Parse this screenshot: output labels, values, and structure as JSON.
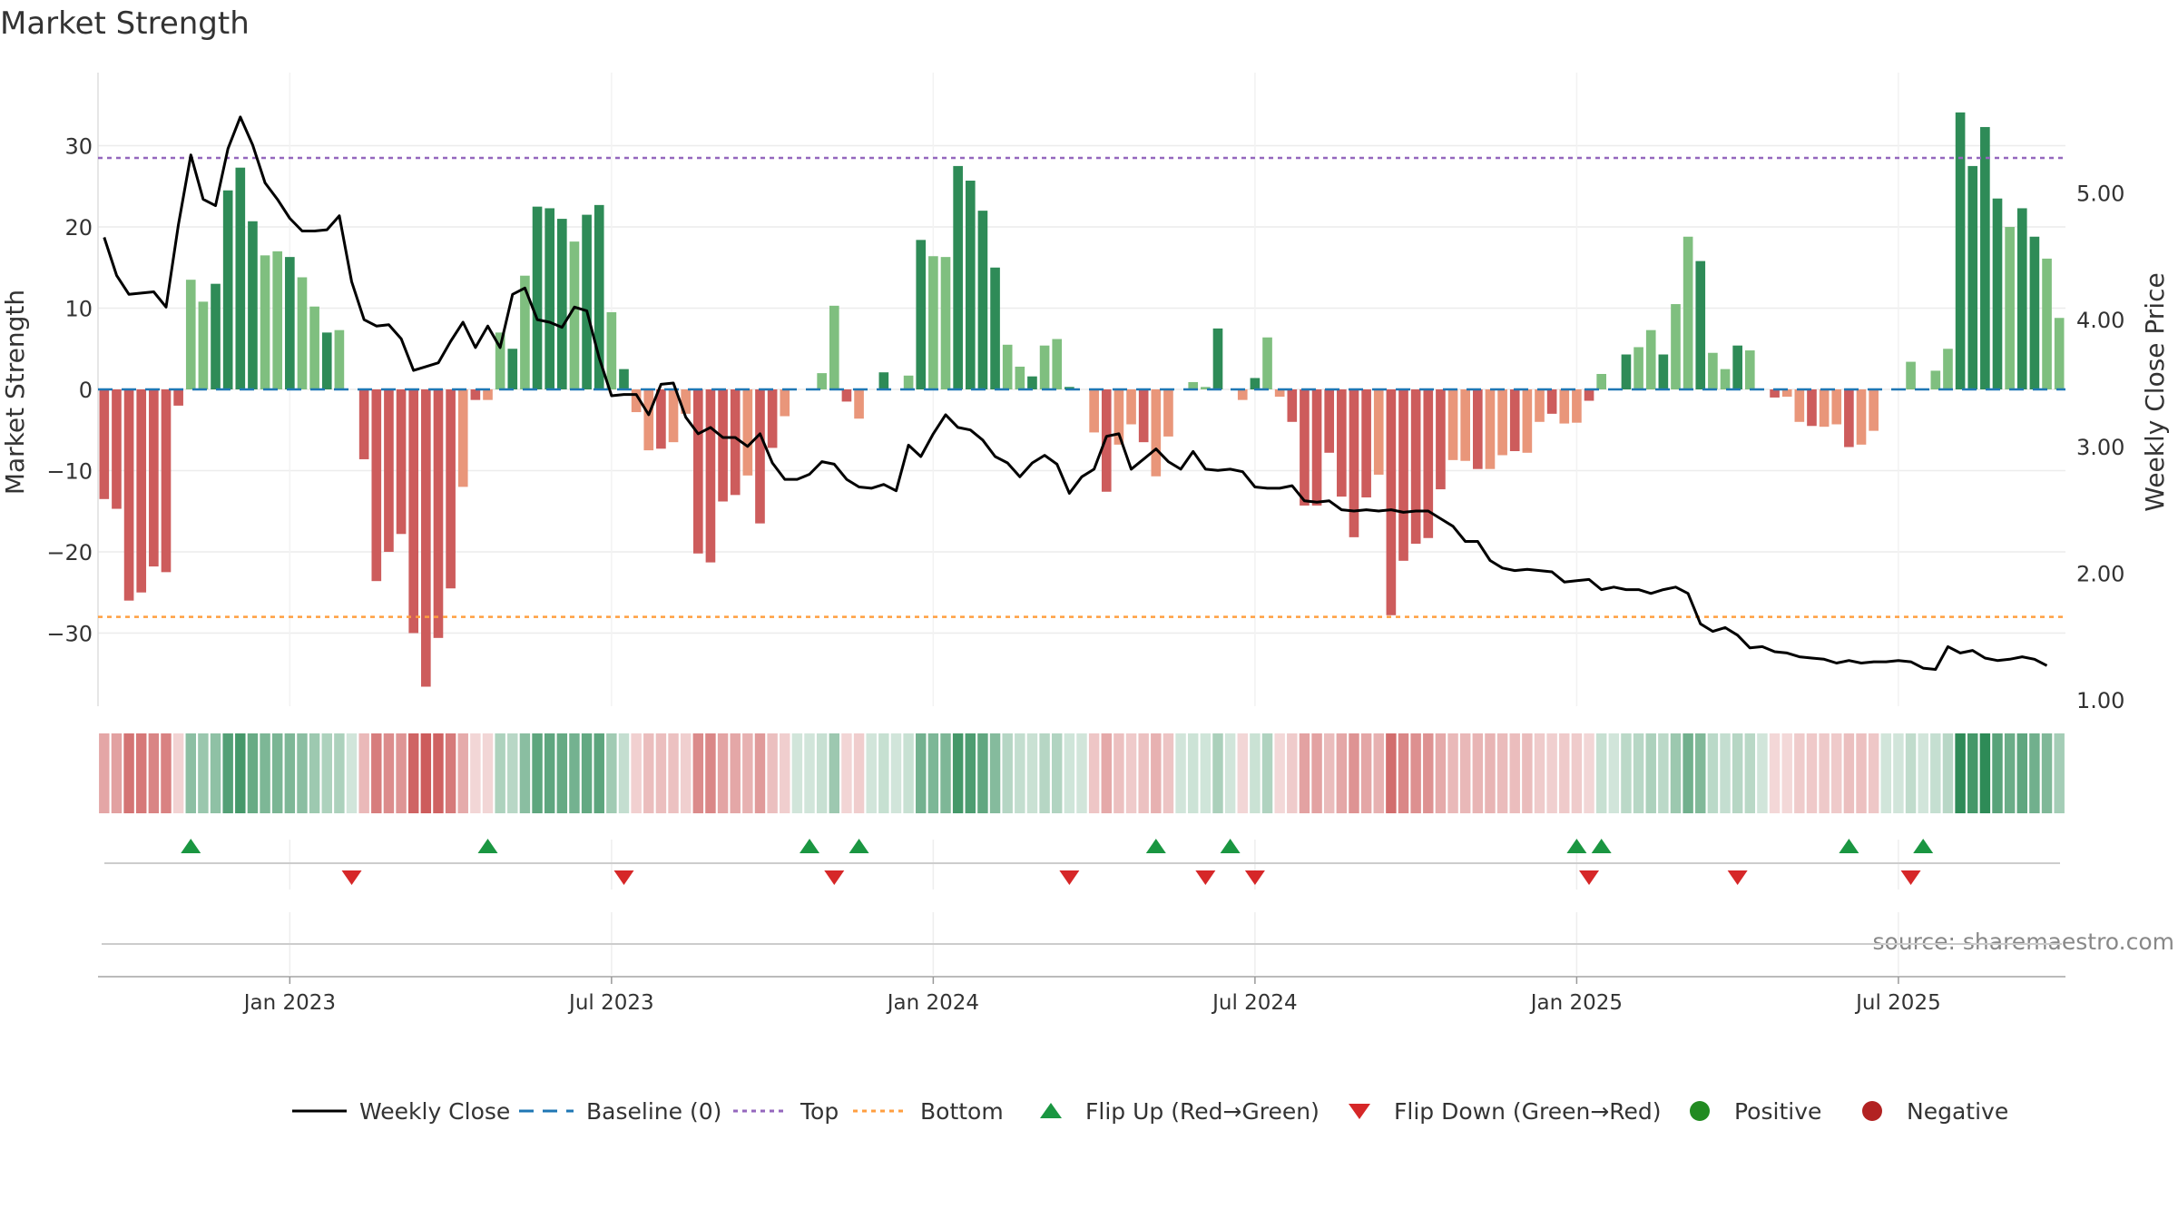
{
  "chart_data": {
    "type": "bar",
    "title": "Market Strength",
    "ylabel": "Market Strength",
    "y2label": "Weekly Close Price",
    "ylim": [
      -39,
      39
    ],
    "y2lim": [
      0.95,
      5.95
    ],
    "y_ticks": [
      30,
      20,
      10,
      0,
      -10,
      -20,
      -30
    ],
    "y_tick_labels": [
      "30",
      "20",
      "10",
      "0",
      "−10",
      "−20",
      "−30"
    ],
    "y2_ticks": [
      5.0,
      4.0,
      3.0,
      2.0,
      1.0
    ],
    "y2_tick_labels": [
      "5.00",
      "4.00",
      "3.00",
      "2.00",
      "1.00"
    ],
    "x_ticks": [
      22,
      48,
      74,
      100,
      126
    ],
    "x_tick_labels": [
      "Jan 2023",
      "Jul 2023",
      "Jan 2024",
      "Jul 2024",
      "Jan 2025",
      "Jul 2025"
    ],
    "x_tick_positions": [
      15,
      41,
      67,
      93,
      119,
      145
    ],
    "top_level": 28.5,
    "bottom_level": -28.0,
    "grid": true,
    "source": "source: sharemaestro.com",
    "legend": [
      "Weekly Close",
      "Baseline (0)",
      "Top",
      "Bottom",
      "Flip Up (Red→Green)",
      "Flip Down (Green→Red)",
      "Positive",
      "Negative"
    ],
    "legend_placement": "bottom",
    "series": [
      {
        "name": "Market Strength",
        "values": [
          -13.5,
          -14.7,
          -26,
          -25,
          -21.8,
          -22.5,
          -2,
          13.5,
          10.8,
          13,
          24.5,
          27.3,
          20.7,
          16.5,
          17,
          16.3,
          13.8,
          10.2,
          7,
          7.3,
          0,
          -8.6,
          -23.6,
          -20,
          -17.8,
          -30,
          -36.6,
          -30.6,
          -24.5,
          -12,
          -1.3,
          -1.3,
          7,
          5,
          14,
          22.5,
          22.3,
          21,
          18.2,
          21.5,
          22.7,
          9.5,
          2.5,
          -2.8,
          -7.5,
          -7.3,
          -6.5,
          -3,
          -20.2,
          -21.3,
          -13.8,
          -13,
          -10.6,
          -16.5,
          -7.2,
          -3.3,
          0,
          0,
          2,
          10.3,
          -1.5,
          -3.6,
          0,
          2.1,
          0,
          1.7,
          18.4,
          16.4,
          16.3,
          27.5,
          25.7,
          22,
          15,
          5.5,
          2.8,
          1.6,
          5.4,
          6.2,
          0.3,
          0,
          -5.3,
          -12.6,
          -6.8,
          -4.3,
          -6.5,
          -10.7,
          -5.8,
          0,
          0.9,
          0.3,
          7.5,
          0,
          -1.3,
          1.4,
          6.4,
          -0.9,
          -4,
          -14.3,
          -14.3,
          -7.8,
          -13.2,
          -18.2,
          -13.3,
          -10.5,
          -27.8,
          -21.1,
          -19,
          -18.3,
          -12.3,
          -8.7,
          -8.8,
          -9.8,
          -9.8,
          -8.1,
          -7.6,
          -7.8,
          -4,
          -3,
          -4.2,
          -4.1,
          -1.4,
          1.9,
          0,
          4.3,
          5.2,
          7.3,
          4.3,
          10.5,
          18.8,
          15.8,
          4.5,
          2.5,
          5.4,
          4.8,
          0,
          -1,
          -0.9,
          -4,
          -4.5,
          -4.6,
          -4.3,
          -7.1,
          -6.8,
          -5.1,
          0,
          0,
          3.4,
          0,
          2.3,
          5,
          34.1,
          27.5,
          32.3,
          23.5,
          20,
          22.3,
          18.8,
          16.1,
          8.8
        ]
      },
      {
        "name": "Weekly Close",
        "axis": "right",
        "values": [
          4.65,
          4.35,
          4.2,
          4.21,
          4.22,
          4.1,
          4.75,
          5.3,
          4.95,
          4.9,
          5.35,
          5.6,
          5.38,
          5.08,
          4.95,
          4.8,
          4.7,
          4.7,
          4.71,
          4.82,
          4.3,
          4.0,
          3.95,
          3.96,
          3.85,
          3.6,
          3.63,
          3.66,
          3.83,
          3.98,
          3.78,
          3.95,
          3.78,
          4.2,
          4.25,
          4.0,
          3.98,
          3.94,
          4.1,
          4.07,
          3.7,
          3.4,
          3.41,
          3.41,
          3.25,
          3.49,
          3.5,
          3.23,
          3.1,
          3.15,
          3.07,
          3.07,
          3.0,
          3.1,
          2.87,
          2.74,
          2.74,
          2.78,
          2.88,
          2.86,
          2.74,
          2.68,
          2.67,
          2.7,
          2.65,
          3.01,
          2.92,
          3.1,
          3.25,
          3.15,
          3.13,
          3.05,
          2.92,
          2.87,
          2.76,
          2.87,
          2.93,
          2.86,
          2.63,
          2.76,
          2.82,
          3.08,
          3.1,
          2.82,
          2.9,
          2.98,
          2.88,
          2.82,
          2.96,
          2.82,
          2.81,
          2.82,
          2.8,
          2.68,
          2.67,
          2.67,
          2.69,
          2.57,
          2.56,
          2.57,
          2.5,
          2.49,
          2.5,
          2.49,
          2.5,
          2.48,
          2.49,
          2.49,
          2.43,
          2.37,
          2.25,
          2.25,
          2.1,
          2.04,
          2.02,
          2.03,
          2.02,
          2.01,
          1.93,
          1.94,
          1.95,
          1.87,
          1.89,
          1.87,
          1.87,
          1.84,
          1.87,
          1.89,
          1.84,
          1.6,
          1.54,
          1.57,
          1.51,
          1.41,
          1.42,
          1.38,
          1.37,
          1.34,
          1.33,
          1.32,
          1.29,
          1.31,
          1.29,
          1.3,
          1.3,
          1.31,
          1.3,
          1.25,
          1.24,
          1.42,
          1.37,
          1.39,
          1.33,
          1.31,
          1.32,
          1.34,
          1.32,
          1.27
        ]
      }
    ],
    "flip_up_weeks": [
      7,
      31,
      57,
      61,
      85,
      91,
      119,
      121,
      141,
      147
    ],
    "flip_down_weeks": [
      20,
      42,
      59,
      78,
      89,
      93,
      120,
      132,
      146
    ],
    "colors": {
      "pos_strong": "#2e8b57",
      "pos_mild": "#7fbf7f",
      "neg_strong": "#cd5c5c",
      "neg_mild": "#e9967a",
      "line": "#000000",
      "baseline": "#1f77b4",
      "top": "#9467bd",
      "bottom": "#ff9f40",
      "flip_up": "#1a9641",
      "flip_down": "#d62728",
      "positive": "#228b22",
      "negative": "#b22222"
    }
  }
}
